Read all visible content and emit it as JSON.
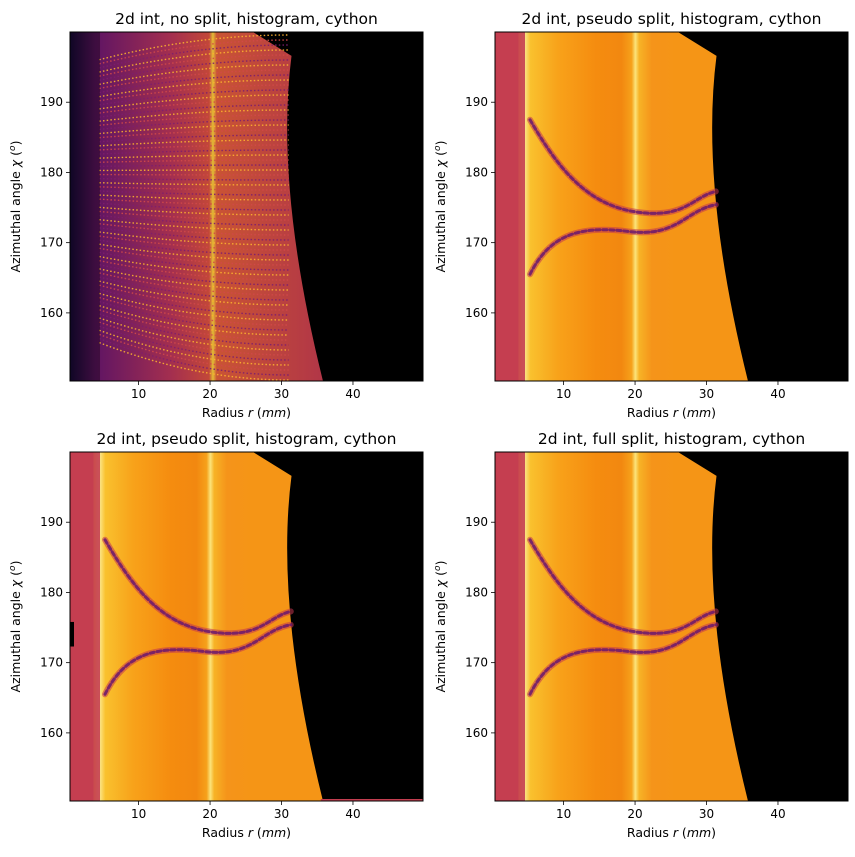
{
  "figure": {
    "panels": [
      {
        "title": "2d int, no split, histogram, cython",
        "variant": "nosplit"
      },
      {
        "title": "2d int, pseudo split, histogram, cython",
        "variant": "pseudo"
      },
      {
        "title": "2d int, pseudo split, histogram, cython",
        "variant": "pseudo"
      },
      {
        "title": "2d int, full split, histogram, cython",
        "variant": "full"
      }
    ]
  },
  "chart_data": [
    {
      "type": "heatmap",
      "title": "2d int, no split, histogram, cython",
      "xlabel": "Radius r (mm)",
      "ylabel": "Azimuthal angle χ (o)",
      "xlim": [
        0.4,
        49.8
      ],
      "ylim": [
        150.3,
        200.0
      ],
      "xticks": [
        10,
        20,
        30,
        40
      ],
      "yticks": [
        160,
        170,
        180,
        190
      ],
      "colormap": "inferno",
      "grid": false
    },
    {
      "type": "heatmap",
      "title": "2d int, pseudo split, histogram, cython",
      "xlabel": "Radius r (mm)",
      "ylabel": "Azimuthal angle χ (o)",
      "xlim": [
        0.4,
        49.8
      ],
      "ylim": [
        150.3,
        200.0
      ],
      "xticks": [
        10,
        20,
        30,
        40
      ],
      "yticks": [
        160,
        170,
        180,
        190
      ],
      "colormap": "inferno",
      "grid": false
    },
    {
      "type": "heatmap",
      "title": "2d int, pseudo split, histogram, cython",
      "xlabel": "Radius r (mm)",
      "ylabel": "Azimuthal angle χ (o)",
      "xlim": [
        0.4,
        49.8
      ],
      "ylim": [
        150.3,
        200.0
      ],
      "xticks": [
        10,
        20,
        30,
        40
      ],
      "yticks": [
        160,
        170,
        180,
        190
      ],
      "colormap": "inferno",
      "grid": false
    },
    {
      "type": "heatmap",
      "title": "2d int, full split, histogram, cython",
      "xlabel": "Radius r (mm)",
      "ylabel": "Azimuthal angle χ (o)",
      "xlim": [
        0.4,
        49.8
      ],
      "ylim": [
        150.3,
        200.0
      ],
      "xticks": [
        10,
        20,
        30,
        40
      ],
      "yticks": [
        160,
        170,
        180,
        190
      ],
      "colormap": "inferno",
      "grid": false
    }
  ]
}
